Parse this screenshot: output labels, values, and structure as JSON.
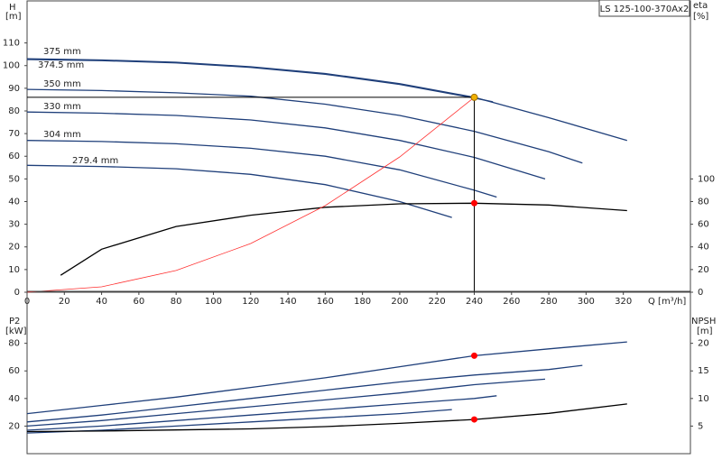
{
  "chart_data": [
    {
      "type": "line",
      "title": "LS 125-100-370Ax2",
      "ylabel": "H",
      "yunit": "[m]",
      "y2label": "eta",
      "y2unit": "[%]",
      "xlabel": "Q [m³/h]",
      "xlim": [
        0,
        356
      ],
      "xticks": [
        0,
        20,
        40,
        60,
        80,
        100,
        120,
        140,
        160,
        180,
        200,
        220,
        240,
        260,
        280,
        300,
        320
      ],
      "ylim": [
        0,
        119
      ],
      "yticks": [
        0,
        10,
        20,
        30,
        40,
        50,
        60,
        70,
        80,
        90,
        100,
        110
      ],
      "y2lim": [
        0,
        238
      ],
      "y2ticks": [
        0,
        20,
        40,
        60,
        80,
        100
      ],
      "grid": false,
      "series": [
        {
          "name": "375 mm",
          "color": "#1f3f7a",
          "x": [
            0,
            40,
            80,
            120,
            160,
            200,
            240,
            280,
            322
          ],
          "values": [
            103,
            102.5,
            101.5,
            99.5,
            96.5,
            92,
            86,
            77,
            67
          ]
        },
        {
          "name": "374.5 mm",
          "color": "#1f3f7a",
          "x": [
            0,
            40,
            80,
            120,
            160,
            200,
            240,
            250
          ],
          "values": [
            102.7,
            102.2,
            101.2,
            99.2,
            96.2,
            91.7,
            85.7,
            84
          ]
        },
        {
          "name": "350 mm",
          "color": "#1f3f7a",
          "x": [
            0,
            40,
            80,
            120,
            160,
            200,
            240,
            280,
            298
          ],
          "values": [
            89.5,
            89,
            88,
            86.5,
            83,
            78,
            71,
            62,
            57
          ]
        },
        {
          "name": "330 mm",
          "color": "#1f3f7a",
          "x": [
            0,
            40,
            80,
            120,
            160,
            200,
            240,
            278
          ],
          "values": [
            79.5,
            79,
            78,
            76,
            72.5,
            67,
            59.5,
            50
          ]
        },
        {
          "name": "304 mm",
          "color": "#1f3f7a",
          "x": [
            0,
            40,
            80,
            120,
            160,
            200,
            240,
            252
          ],
          "values": [
            67,
            66.5,
            65.5,
            63.5,
            60,
            54,
            45,
            42
          ]
        },
        {
          "name": "279.4 mm",
          "color": "#1f3f7a",
          "x": [
            0,
            40,
            80,
            120,
            160,
            200,
            228
          ],
          "values": [
            56,
            55.5,
            54.5,
            52,
            47.5,
            40,
            33
          ]
        },
        {
          "color": "#000000",
          "axis": "y2",
          "x": [
            18,
            40,
            80,
            120,
            160,
            200,
            240,
            280,
            322
          ],
          "values": [
            15,
            38,
            58,
            68,
            75,
            78,
            78.6,
            77,
            72
          ]
        },
        {
          "color": "#ff3030",
          "x": [
            0,
            40,
            80,
            120,
            160,
            200,
            240
          ],
          "values": [
            0,
            2.4,
            9.6,
            21.5,
            38.2,
            59.7,
            86
          ]
        }
      ],
      "points": [
        {
          "x": 240,
          "y": 86,
          "color": "#f0b000",
          "crosshair": true
        },
        {
          "x": 240,
          "y": 78.6,
          "color": "#ff0000",
          "axis": "y2"
        }
      ]
    },
    {
      "type": "line",
      "ylabel": "P2",
      "yunit": "[kW]",
      "y2label": "NPSH",
      "y2unit": "[m]",
      "xlim": [
        0,
        356
      ],
      "ylim": [
        0,
        102
      ],
      "yticks": [
        20,
        40,
        60,
        80
      ],
      "y2lim": [
        0,
        25.5
      ],
      "y2ticks": [
        5,
        10,
        15,
        20
      ],
      "grid": false,
      "series": [
        {
          "color": "#1f3f7a",
          "x": [
            0,
            40,
            80,
            120,
            160,
            200,
            240,
            280,
            322
          ],
          "values": [
            29,
            35,
            41,
            48,
            55,
            63,
            71,
            76,
            81
          ]
        },
        {
          "color": "#1f3f7a",
          "x": [
            0,
            40,
            80,
            120,
            160,
            200,
            240,
            280,
            298
          ],
          "values": [
            23,
            28,
            34,
            40,
            46,
            52,
            57,
            61,
            64
          ]
        },
        {
          "color": "#1f3f7a",
          "x": [
            0,
            40,
            80,
            120,
            160,
            200,
            240,
            278
          ],
          "values": [
            20,
            24,
            29,
            34,
            39,
            44,
            50,
            54
          ]
        },
        {
          "color": "#1f3f7a",
          "x": [
            0,
            40,
            80,
            120,
            160,
            200,
            240,
            252
          ],
          "values": [
            17,
            20,
            24,
            28,
            32,
            36,
            40,
            42
          ]
        },
        {
          "color": "#1f3f7a",
          "x": [
            0,
            40,
            80,
            120,
            160,
            200,
            228
          ],
          "values": [
            15,
            17,
            20,
            23,
            26,
            29,
            32
          ]
        },
        {
          "color": "#000000",
          "axis": "y2",
          "x": [
            0,
            40,
            80,
            120,
            160,
            200,
            240,
            280,
            322
          ],
          "values": [
            4,
            4.1,
            4.3,
            4.5,
            4.9,
            5.5,
            6.2,
            7.3,
            9
          ]
        }
      ],
      "points": [
        {
          "x": 240,
          "y": 71,
          "color": "#ff0000"
        },
        {
          "x": 240,
          "y": 6.2,
          "color": "#ff0000",
          "axis": "y2"
        }
      ]
    }
  ]
}
